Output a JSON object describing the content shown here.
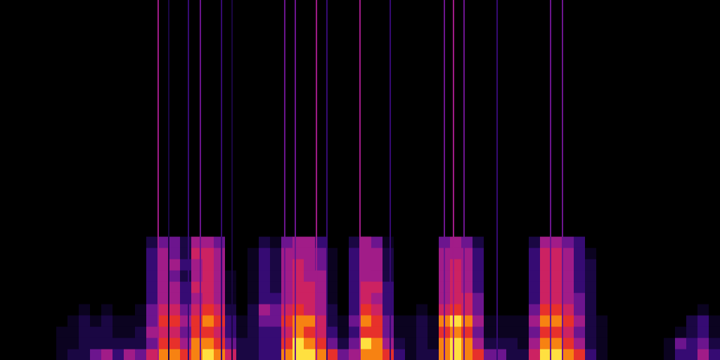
{
  "chart_data": {
    "type": "spectrogram",
    "xlim": [
      0,
      64
    ],
    "ylim": [
      0,
      32
    ],
    "zlim": [
      0,
      9
    ],
    "tick_labels": false,
    "grid": false,
    "cells": [
      [
        0,
        0,
        0,
        0,
        0,
        0,
        0,
        0,
        0,
        0,
        0,
        0
      ],
      [
        0,
        0,
        0,
        0,
        0,
        0,
        0,
        0,
        0,
        0,
        0,
        0
      ],
      [
        0,
        0,
        0,
        0,
        0,
        0,
        0,
        0,
        0,
        0,
        0,
        0
      ],
      [
        0,
        0,
        0,
        0,
        0,
        0,
        0,
        0,
        0,
        0,
        0,
        0
      ],
      [
        0,
        0,
        0,
        0,
        0,
        0,
        0,
        0,
        0,
        0,
        0,
        0
      ],
      [
        1,
        1,
        1,
        0,
        0,
        0,
        0,
        0,
        0,
        0,
        0,
        0
      ],
      [
        2,
        1,
        1,
        1,
        0,
        0,
        0,
        0,
        0,
        0,
        0,
        0
      ],
      [
        2,
        2,
        2,
        2,
        1,
        0,
        0,
        0,
        0,
        0,
        0,
        0
      ],
      [
        4,
        2,
        2,
        1,
        0,
        0,
        0,
        0,
        0,
        0,
        0,
        0
      ],
      [
        5,
        2,
        2,
        2,
        1,
        0,
        0,
        0,
        0,
        0,
        0,
        0
      ],
      [
        3,
        2,
        1,
        1,
        0,
        0,
        0,
        0,
        0,
        0,
        0,
        0
      ],
      [
        5,
        2,
        1,
        1,
        0,
        0,
        0,
        0,
        0,
        0,
        0,
        0
      ],
      [
        4,
        2,
        2,
        1,
        1,
        0,
        0,
        0,
        0,
        0,
        0,
        0
      ],
      [
        6,
        4,
        5,
        4,
        4,
        3,
        3,
        3,
        3,
        3,
        2,
        0
      ],
      [
        8,
        7,
        6,
        7,
        6,
        5,
        5,
        5,
        5,
        5,
        4,
        0
      ],
      [
        8,
        7,
        6,
        7,
        6,
        5,
        5,
        4,
        5,
        4,
        4,
        0
      ],
      [
        7,
        5,
        4,
        5,
        4,
        3,
        3,
        2,
        3,
        2,
        2,
        0
      ],
      [
        8,
        8,
        7,
        7,
        6,
        5,
        6,
        5,
        5,
        6,
        5,
        0
      ],
      [
        9,
        8,
        7,
        8,
        7,
        6,
        6,
        6,
        6,
        6,
        5,
        0
      ],
      [
        8,
        7,
        6,
        7,
        6,
        5,
        5,
        5,
        5,
        5,
        4,
        0
      ],
      [
        6,
        4,
        3,
        3,
        2,
        1,
        1,
        1,
        0,
        0,
        0,
        0
      ],
      [
        2,
        2,
        1,
        1,
        0,
        0,
        0,
        0,
        0,
        0,
        0,
        0
      ],
      [
        2,
        2,
        2,
        2,
        2,
        1,
        1,
        1,
        1,
        1,
        0,
        0
      ],
      [
        3,
        3,
        3,
        4,
        5,
        3,
        3,
        3,
        3,
        3,
        2,
        0
      ],
      [
        3,
        3,
        3,
        4,
        4,
        3,
        2,
        2,
        2,
        2,
        1,
        0
      ],
      [
        8,
        7,
        6,
        7,
        6,
        5,
        5,
        5,
        5,
        5,
        4,
        0
      ],
      [
        9,
        9,
        8,
        8,
        7,
        6,
        6,
        6,
        6,
        5,
        5,
        0
      ],
      [
        9,
        8,
        7,
        8,
        6,
        6,
        6,
        5,
        5,
        5,
        5,
        0
      ],
      [
        8,
        7,
        6,
        6,
        5,
        5,
        5,
        5,
        4,
        4,
        3,
        0
      ],
      [
        7,
        4,
        3,
        2,
        2,
        1,
        1,
        1,
        1,
        1,
        0,
        0
      ],
      [
        4,
        2,
        1,
        1,
        0,
        0,
        0,
        0,
        0,
        0,
        0,
        0
      ],
      [
        5,
        4,
        3,
        4,
        3,
        3,
        3,
        3,
        3,
        3,
        2,
        0
      ],
      [
        8,
        9,
        7,
        8,
        7,
        6,
        6,
        5,
        5,
        5,
        5,
        0
      ],
      [
        8,
        8,
        7,
        7,
        6,
        5,
        6,
        5,
        5,
        5,
        4,
        0
      ],
      [
        7,
        5,
        4,
        4,
        3,
        3,
        3,
        2,
        2,
        2,
        1,
        0
      ],
      [
        3,
        2,
        1,
        1,
        0,
        0,
        0,
        0,
        0,
        0,
        0,
        0
      ],
      [
        1,
        1,
        1,
        1,
        0,
        0,
        0,
        0,
        0,
        0,
        0,
        0
      ],
      [
        2,
        2,
        2,
        2,
        1,
        0,
        0,
        0,
        0,
        0,
        0,
        0
      ],
      [
        2,
        1,
        1,
        1,
        0,
        0,
        0,
        0,
        0,
        0,
        0,
        0
      ],
      [
        8,
        8,
        7,
        8,
        6,
        5,
        5,
        5,
        5,
        5,
        4,
        0
      ],
      [
        9,
        9,
        8,
        9,
        7,
        6,
        6,
        6,
        6,
        5,
        5,
        0
      ],
      [
        8,
        8,
        7,
        8,
        6,
        6,
        5,
        5,
        5,
        5,
        4,
        0
      ],
      [
        7,
        5,
        4,
        5,
        4,
        4,
        3,
        3,
        3,
        3,
        2,
        0
      ],
      [
        4,
        2,
        1,
        1,
        0,
        0,
        0,
        0,
        0,
        0,
        0,
        0
      ],
      [
        4,
        2,
        1,
        1,
        0,
        0,
        0,
        0,
        0,
        0,
        0,
        0
      ],
      [
        2,
        2,
        1,
        1,
        0,
        0,
        0,
        0,
        0,
        0,
        0,
        0
      ],
      [
        2,
        1,
        1,
        1,
        0,
        0,
        0,
        0,
        0,
        0,
        0,
        0
      ],
      [
        6,
        5,
        4,
        5,
        4,
        3,
        3,
        3,
        3,
        3,
        2,
        0
      ],
      [
        9,
        8,
        7,
        8,
        7,
        6,
        6,
        6,
        6,
        6,
        5,
        0
      ],
      [
        9,
        8,
        7,
        8,
        7,
        6,
        6,
        6,
        6,
        6,
        5,
        0
      ],
      [
        8,
        7,
        6,
        7,
        6,
        5,
        5,
        5,
        5,
        5,
        4,
        0
      ],
      [
        7,
        5,
        4,
        5,
        4,
        4,
        3,
        3,
        3,
        3,
        3,
        0
      ],
      [
        3,
        2,
        2,
        2,
        2,
        2,
        2,
        2,
        2,
        1,
        0,
        0
      ],
      [
        1,
        1,
        1,
        1,
        0,
        0,
        0,
        0,
        0,
        0,
        0,
        0
      ],
      [
        0,
        0,
        0,
        0,
        0,
        0,
        0,
        0,
        0,
        0,
        0,
        0
      ],
      [
        0,
        0,
        0,
        0,
        0,
        0,
        0,
        0,
        0,
        0,
        0,
        0
      ],
      [
        0,
        0,
        0,
        0,
        0,
        0,
        0,
        0,
        0,
        0,
        0,
        0
      ],
      [
        0,
        0,
        0,
        0,
        0,
        0,
        0,
        0,
        0,
        0,
        0,
        0
      ],
      [
        0,
        0,
        0,
        0,
        0,
        0,
        0,
        0,
        0,
        0,
        0,
        0
      ],
      [
        1,
        1,
        0,
        0,
        0,
        0,
        0,
        0,
        0,
        0,
        0,
        0
      ],
      [
        3,
        4,
        1,
        0,
        0,
        0,
        0,
        0,
        0,
        0,
        0,
        0
      ],
      [
        3,
        3,
        2,
        2,
        0,
        0,
        0,
        0,
        0,
        0,
        0,
        0
      ],
      [
        5,
        4,
        3,
        3,
        1,
        0,
        0,
        0,
        0,
        0,
        0,
        0
      ],
      [
        3,
        2,
        1,
        1,
        0,
        0,
        0,
        0,
        0,
        0,
        0,
        0
      ]
    ],
    "clicks": {
      "x": [
        14.06,
        15.0,
        16.75,
        17.81,
        19.69,
        20.63,
        25.31,
        26.25,
        28.13,
        29.06,
        32.0,
        34.69,
        39.5,
        40.31,
        41.25,
        44.19,
        48.94,
        50.0
      ],
      "level": [
        5,
        2,
        3,
        4,
        3,
        2,
        4,
        4,
        5,
        3,
        5,
        3,
        4,
        5,
        4,
        3,
        4,
        4
      ]
    }
  }
}
